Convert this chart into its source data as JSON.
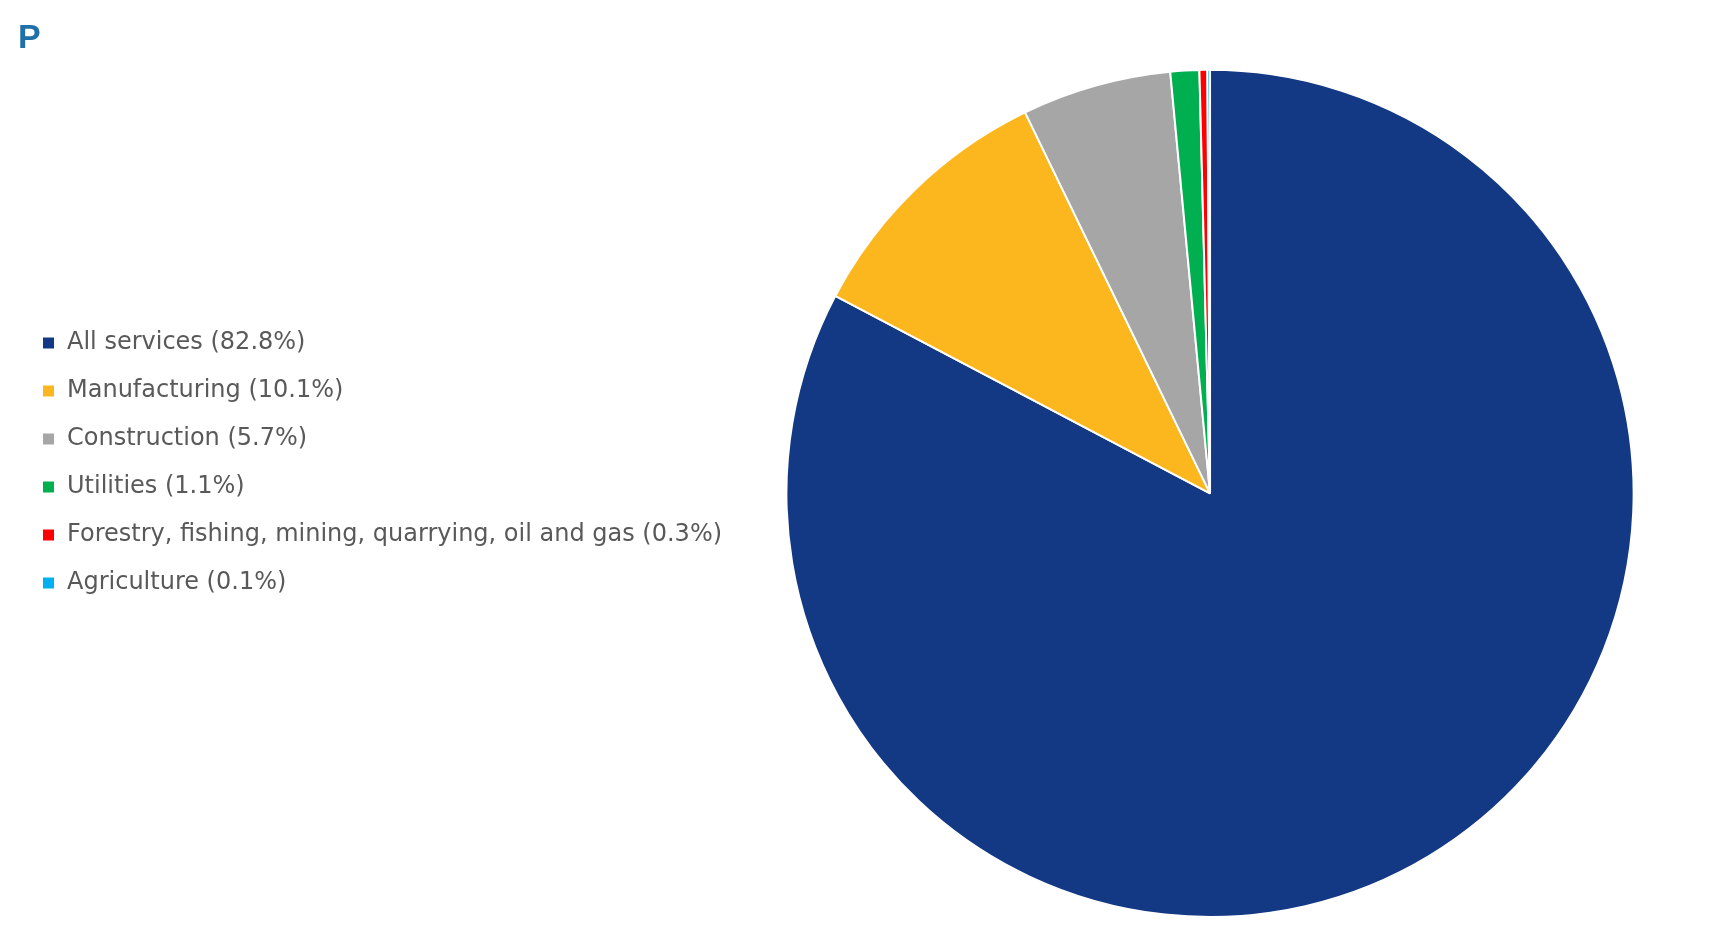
{
  "chart_data": {
    "type": "pie",
    "title": "P",
    "categories": [
      "All services (82.8%)",
      "Manufacturing (10.1%)",
      "Construction (5.7%)",
      "Utilities (1.1%)",
      "Forestry, fishing, mining, quarrying, oil and gas (0.3%)",
      "Agriculture (0.1%)"
    ],
    "values": [
      82.8,
      10.1,
      5.7,
      1.1,
      0.3,
      0.1
    ],
    "colors": [
      "#133884",
      "#fdb71e",
      "#a6a6a6",
      "#00b050",
      "#ff0000",
      "#00b0f0"
    ],
    "legend": "left"
  }
}
